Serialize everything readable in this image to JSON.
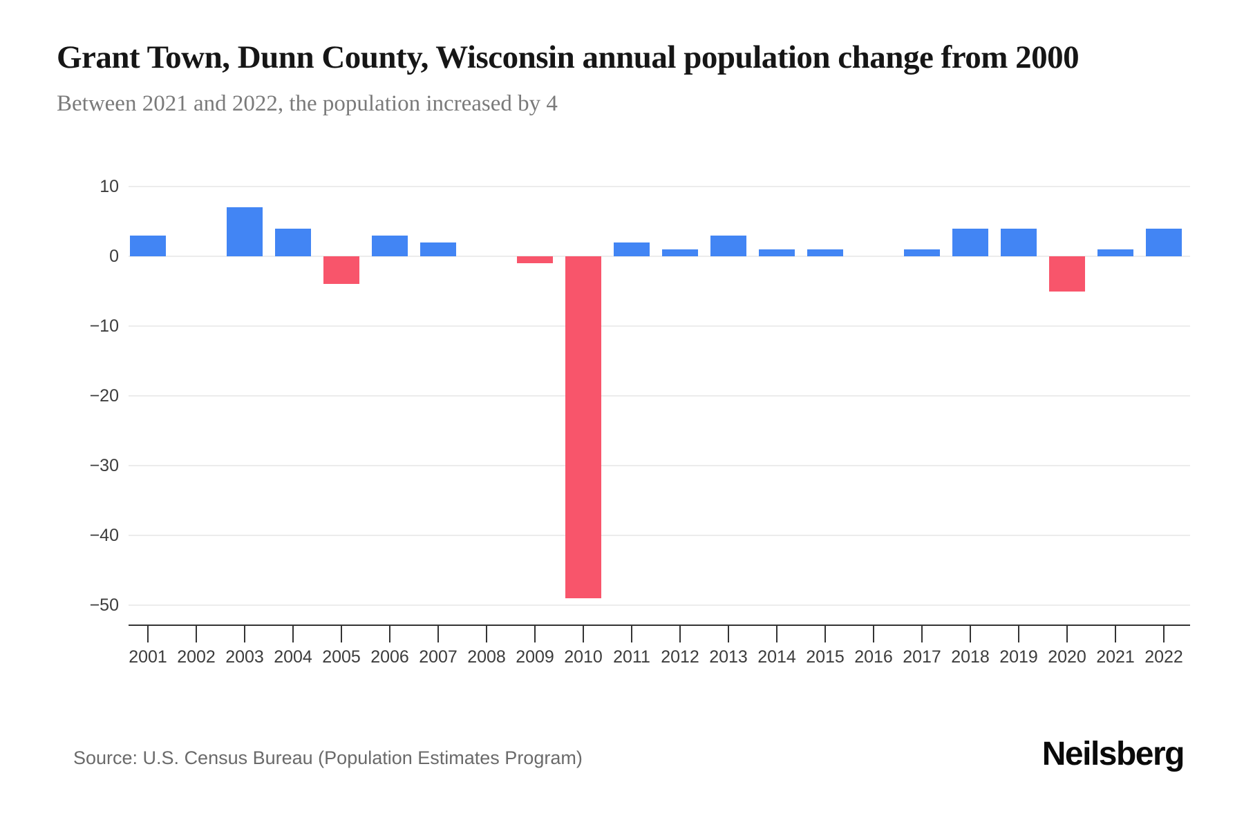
{
  "chart_data": {
    "type": "bar",
    "title": "Grant Town, Dunn County, Wisconsin annual population change from 2000",
    "subtitle": "Between 2021 and 2022, the population increased by 4",
    "categories": [
      "2001",
      "2002",
      "2003",
      "2004",
      "2005",
      "2006",
      "2007",
      "2008",
      "2009",
      "2010",
      "2011",
      "2012",
      "2013",
      "2014",
      "2015",
      "2016",
      "2017",
      "2018",
      "2019",
      "2020",
      "2021",
      "2022"
    ],
    "values": [
      3,
      0,
      7,
      4,
      -4,
      3,
      2,
      0,
      -1,
      -49,
      2,
      1,
      3,
      1,
      1,
      0,
      1,
      4,
      4,
      -5,
      1,
      4
    ],
    "xlabel": "",
    "ylabel": "",
    "ylim": [
      -50,
      10
    ],
    "yticks": [
      {
        "v": 10,
        "label": "10"
      },
      {
        "v": 0,
        "label": "0"
      },
      {
        "v": -10,
        "label": "−10"
      },
      {
        "v": -20,
        "label": "−20"
      },
      {
        "v": -30,
        "label": "−30"
      },
      {
        "v": -40,
        "label": "−40"
      },
      {
        "v": -50,
        "label": "−50"
      }
    ],
    "grid": true,
    "legend": "none",
    "colors": {
      "positive": "#4285F4",
      "negative": "#F8556B",
      "grid": "#ececec",
      "axis": "#333333",
      "tick_label": "#3c3c3c"
    }
  },
  "footer": {
    "source": "Source: U.S. Census Bureau (Population Estimates Program)",
    "brand": "Neilsberg"
  }
}
